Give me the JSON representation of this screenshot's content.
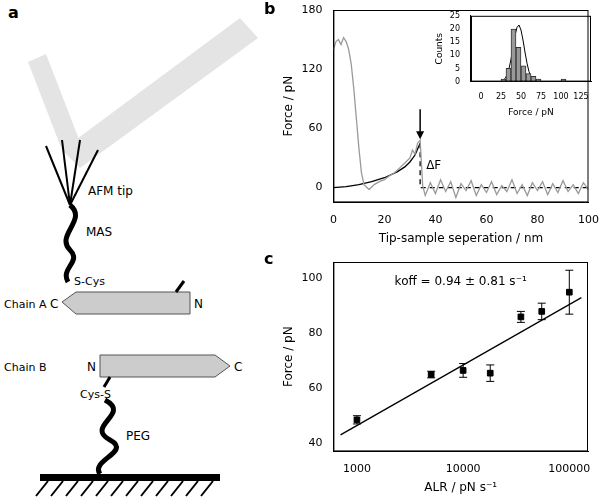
{
  "chart_data": [
    {
      "type": "line",
      "title": "b",
      "xlabel": "Tip-sample seperation / nm",
      "ylabel": "Force / pN",
      "xlim": [
        0,
        100
      ],
      "xticks": [
        0,
        20,
        40,
        60,
        80,
        100
      ],
      "ylim": [
        -15,
        180
      ],
      "yticks": [
        0,
        60,
        120,
        180
      ],
      "grid": false,
      "annotations": [
        "ΔF"
      ],
      "series": [
        {
          "color": "#9a9a9a",
          "marker": "none",
          "line_style": "solid",
          "x": [
            0,
            1,
            2,
            3,
            4,
            5,
            6,
            7,
            8,
            9,
            10,
            11,
            12,
            14,
            16,
            18,
            20,
            22,
            24,
            26,
            28,
            30,
            31,
            32,
            33,
            34,
            35,
            36,
            38,
            40,
            42,
            44,
            46,
            48,
            50,
            52,
            54,
            56,
            58,
            60,
            62,
            64,
            66,
            68,
            70,
            72,
            74,
            76,
            78,
            80,
            82,
            84,
            86,
            88,
            90,
            92,
            94,
            96,
            98,
            100
          ],
          "values": [
            140,
            148,
            150,
            145,
            152,
            148,
            140,
            125,
            100,
            70,
            40,
            15,
            3,
            -2,
            3,
            6,
            8,
            12,
            15,
            20,
            25,
            30,
            38,
            34,
            45,
            48,
            2,
            -8,
            5,
            -6,
            8,
            -4,
            6,
            -10,
            4,
            -3,
            7,
            -8,
            3,
            -5,
            6,
            -7,
            2,
            -4,
            8,
            -6,
            3,
            -8,
            5,
            -3,
            6,
            -7,
            4,
            -5,
            7,
            -4,
            3,
            -6,
            5,
            -2
          ]
        },
        {
          "color": "#000000",
          "marker": "none",
          "line_style": "solid",
          "x": [
            0,
            5,
            10,
            15,
            20,
            25,
            28,
            30,
            32,
            34
          ],
          "values": [
            0,
            1,
            3,
            6,
            10,
            16,
            21,
            26,
            33,
            45
          ]
        },
        {
          "color": "#000000",
          "marker": "none",
          "line_style": "dashed",
          "x": [
            34,
            34,
            100
          ],
          "values": [
            45,
            0,
            0
          ]
        }
      ]
    },
    {
      "type": "histogram",
      "xlabel": "Force / pN",
      "ylabel": "Counts",
      "xlim": [
        0,
        125
      ],
      "xticks": [
        0,
        25,
        50,
        75,
        100,
        125
      ],
      "ylim": [
        0,
        25
      ],
      "yticks": [
        0,
        5,
        10,
        15,
        20,
        25
      ],
      "grid": false,
      "bins": [
        25,
        31.25,
        37.5,
        43.75,
        50,
        56.25,
        62.5,
        68.75,
        75,
        81.25,
        87.5,
        93.75,
        100,
        106.25
      ],
      "values": [
        1,
        5,
        20,
        13,
        6,
        3,
        2,
        1,
        0,
        0,
        0,
        0,
        1
      ],
      "color": "#999999",
      "series": [
        {
          "type": "line",
          "color": "#000000",
          "marker": "none",
          "line_style": "solid",
          "x": [
            25,
            27.5,
            30,
            32.5,
            35,
            37.5,
            40,
            42.5,
            45,
            47.5,
            50,
            52.5,
            55,
            57.5,
            60,
            62.5,
            65,
            67.5,
            70
          ],
          "values": [
            0.15,
            0.44,
            1.1,
            2.5,
            4.9,
            8.5,
            13,
            17.5,
            20.6,
            21.5,
            19.6,
            15.8,
            11.2,
            7,
            3.8,
            1.9,
            0.8,
            0.3,
            0.1
          ]
        }
      ]
    },
    {
      "type": "scatter",
      "title": "c",
      "xlabel": "ALR / pN s⁻¹",
      "ylabel": "Force / pN",
      "log": "x",
      "xlim": [
        600,
        150000
      ],
      "xticks": [
        1000,
        10000,
        100000
      ],
      "ylim": [
        37,
        106
      ],
      "yticks": [
        40,
        60,
        80,
        100
      ],
      "grid": false,
      "annotations": [
        "koff = 0.94 ± 0.81 s⁻¹"
      ],
      "series": [
        {
          "color": "#000000",
          "marker": "square",
          "x": [
            1000,
            5000,
            10000,
            18000,
            35000,
            55000,
            100000
          ],
          "values": [
            48.5,
            65,
            66.5,
            65.5,
            86,
            88,
            95
          ],
          "errors": [
            1.5,
            1.2,
            2.5,
            3,
            2,
            3,
            8
          ]
        },
        {
          "type": "line",
          "color": "#000000",
          "marker": "none",
          "line_style": "solid",
          "x": [
            700,
            130000
          ],
          "values": [
            43,
            93
          ]
        }
      ]
    }
  ],
  "diagram": {
    "label": "a",
    "texts": {
      "afm_tip": "AFM tip",
      "linker_top": "MAS",
      "thiol_top": "S-Cys",
      "chain_a": "Chain A",
      "chain_a_c": "C",
      "chain_a_n": "N",
      "chain_b": "Chain B",
      "chain_b_n": "N",
      "chain_b_c": "C",
      "thiol_bottom": "Cys-S",
      "linker_bottom": "PEG"
    }
  }
}
